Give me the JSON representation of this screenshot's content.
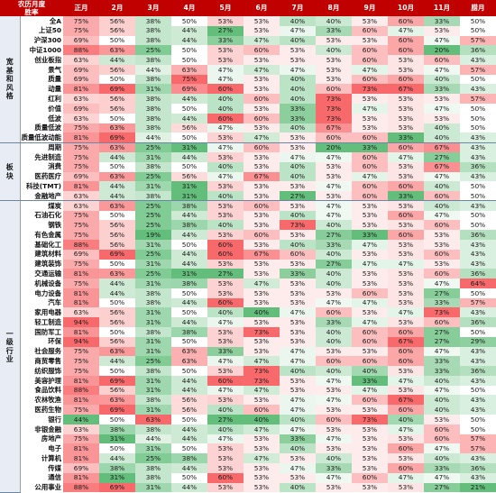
{
  "chart_data": {
    "type": "table",
    "title": "农历月度",
    "subtitle": "胜率",
    "columns": [
      "正月",
      "2月",
      "3月",
      "4月",
      "5月",
      "6月",
      "7月",
      "8月",
      "9月",
      "10月",
      "11月",
      "腊月"
    ],
    "groups": [
      {
        "name": "宽基和风格",
        "rows": [
          {
            "name": "全A",
            "values": [
              75,
              56,
              38,
              50,
              53,
              53,
              40,
              40,
              53,
              60,
              33,
              50
            ]
          },
          {
            "name": "上证50",
            "values": [
              75,
              56,
              38,
              44,
              27,
              53,
              47,
              33,
              60,
              47,
              53,
              50
            ]
          },
          {
            "name": "沪深300",
            "values": [
              69,
              50,
              38,
              44,
              33,
              47,
              40,
              53,
              53,
              60,
              47,
              57
            ]
          },
          {
            "name": "中证1000",
            "values": [
              88,
              63,
              25,
              50,
              53,
              60,
              53,
              40,
              60,
              60,
              20,
              36
            ]
          },
          {
            "name": "创业板指",
            "values": [
              63,
              44,
              38,
              50,
              53,
              53,
              53,
              53,
              60,
              53,
              60,
              43
            ]
          },
          {
            "name": "景气",
            "values": [
              69,
              56,
              44,
              63,
              47,
              47,
              47,
              53,
              47,
              53,
              47,
              57
            ]
          },
          {
            "name": "质量",
            "values": [
              69,
              50,
              38,
              75,
              47,
              53,
              40,
              53,
              60,
              60,
              40,
              50
            ]
          },
          {
            "name": "动量",
            "values": [
              81,
              69,
              31,
              69,
              60,
              53,
              40,
              60,
              73,
              67,
              33,
              43
            ]
          },
          {
            "name": "红利",
            "values": [
              63,
              56,
              38,
              44,
              40,
              60,
              40,
              73,
              53,
              53,
              53,
              57
            ]
          },
          {
            "name": "价值",
            "values": [
              69,
              56,
              38,
              50,
              40,
              53,
              33,
              73,
              47,
              53,
              47,
              50
            ]
          },
          {
            "name": "低波",
            "values": [
              63,
              50,
              38,
              44,
              60,
              60,
              33,
              73,
              53,
              53,
              53,
              50
            ]
          },
          {
            "name": "质量低波",
            "values": [
              75,
              63,
              38,
              56,
              47,
              53,
              40,
              67,
              53,
              53,
              40,
              50
            ]
          },
          {
            "name": "质量低波动能",
            "values": [
              81,
              69,
              44,
              50,
              53,
              47,
              53,
              60,
              60,
              33,
              40,
              43
            ]
          }
        ]
      },
      {
        "name": "板块",
        "rows": [
          {
            "name": "周期",
            "values": [
              75,
              63,
              25,
              31,
              47,
              60,
              53,
              20,
              33,
              60,
              67,
              43
            ]
          },
          {
            "name": "先进制造",
            "values": [
              75,
              44,
              31,
              44,
              53,
              53,
              47,
              47,
              60,
              47,
              27,
              43
            ]
          },
          {
            "name": "消费",
            "values": [
              75,
              50,
              38,
              50,
              40,
              53,
              40,
              53,
              60,
              53,
              67,
              36
            ]
          },
          {
            "name": "医药医疗",
            "values": [
              69,
              63,
              25,
              56,
              47,
              67,
              40,
              53,
              47,
              53,
              47,
              43
            ]
          },
          {
            "name": "科技(TMT)",
            "values": [
              81,
              44,
              31,
              31,
              53,
              53,
              53,
              47,
              60,
              60,
              40,
              50
            ]
          },
          {
            "name": "金融地产",
            "values": [
              63,
              44,
              38,
              31,
              40,
              53,
              27,
              53,
              60,
              33,
              60,
              50
            ]
          }
        ]
      },
      {
        "name": "一级行业",
        "rows": [
          {
            "name": "煤炭",
            "values": [
              63,
              63,
              25,
              38,
              53,
              60,
              53,
              47,
              53,
              53,
              40,
              43
            ]
          },
          {
            "name": "石油石化",
            "values": [
              75,
              50,
              25,
              44,
              53,
              53,
              40,
              47,
              53,
              60,
              47,
              50
            ]
          },
          {
            "name": "钢铁",
            "values": [
              75,
              56,
              25,
              38,
              40,
              53,
              73,
              40,
              53,
              53,
              60,
              50
            ]
          },
          {
            "name": "有色金属",
            "values": [
              75,
              56,
              19,
              44,
              53,
              60,
              53,
              27,
              33,
              60,
              53,
              36
            ]
          },
          {
            "name": "基础化工",
            "values": [
              88,
              56,
              31,
              50,
              60,
              53,
              40,
              33,
              47,
              53,
              53,
              43
            ]
          },
          {
            "name": "建筑材料",
            "values": [
              69,
              69,
              25,
              44,
              60,
              67,
              60,
              40,
              53,
              53,
              60,
              43
            ]
          },
          {
            "name": "建筑装饰",
            "values": [
              75,
              50,
              31,
              44,
              53,
              53,
              53,
              27,
              47,
              47,
              53,
              43
            ]
          },
          {
            "name": "交通运输",
            "values": [
              81,
              63,
              25,
              31,
              27,
              53,
              33,
              40,
              53,
              53,
              60,
              36
            ]
          },
          {
            "name": "机械设备",
            "values": [
              75,
              44,
              31,
              38,
              53,
              47,
              53,
              40,
              53,
              53,
              47,
              64
            ]
          },
          {
            "name": "电力设备",
            "values": [
              81,
              44,
              38,
              50,
              53,
              53,
              53,
              53,
              60,
              53,
              27,
              50
            ]
          },
          {
            "name": "汽车",
            "values": [
              81,
              50,
              38,
              44,
              60,
              53,
              53,
              47,
              47,
              53,
              33,
              57
            ]
          },
          {
            "name": "家用电器",
            "values": [
              63,
              56,
              31,
              50,
              40,
              40,
              47,
              60,
              53,
              47,
              73,
              43
            ]
          },
          {
            "name": "轻工制造",
            "values": [
              94,
              56,
              31,
              44,
              47,
              53,
              53,
              33,
              47,
              53,
              60,
              36
            ]
          },
          {
            "name": "国防军工",
            "values": [
              81,
              50,
              38,
              38,
              53,
              73,
              53,
              40,
              60,
              60,
              27,
              50
            ]
          },
          {
            "name": "环保",
            "values": [
              94,
              56,
              31,
              50,
              53,
              53,
              53,
              40,
              60,
              67,
              27,
              29
            ]
          },
          {
            "name": "社会服务",
            "values": [
              75,
              63,
              31,
              63,
              33,
              53,
              47,
              53,
              53,
              60,
              47,
              43
            ]
          },
          {
            "name": "商贸零售",
            "values": [
              75,
              44,
              25,
              63,
              47,
              47,
              47,
              60,
              60,
              60,
              33,
              43
            ]
          },
          {
            "name": "纺织服饰",
            "values": [
              75,
              50,
              38,
              50,
              53,
              73,
              40,
              40,
              40,
              53,
              33,
              36
            ]
          },
          {
            "name": "美容护理",
            "values": [
              81,
              69,
              31,
              44,
              60,
              73,
              53,
              47,
              33,
              47,
              40,
              43
            ]
          },
          {
            "name": "食品饮料",
            "values": [
              88,
              56,
              31,
              44,
              47,
              47,
              53,
              53,
              47,
              53,
              47,
              50
            ]
          },
          {
            "name": "农林牧渔",
            "values": [
              81,
              63,
              38,
              56,
              53,
              53,
              47,
              47,
              60,
              67,
              40,
              43
            ]
          },
          {
            "name": "医药生物",
            "values": [
              75,
              69,
              31,
              56,
              40,
              60,
              47,
              53,
              53,
              60,
              40,
              43
            ]
          },
          {
            "name": "银行",
            "values": [
              44,
              50,
              63,
              50,
              27,
              40,
              40,
              60,
              73,
              40,
              53,
              50
            ]
          },
          {
            "name": "非银金融",
            "values": [
              63,
              38,
              38,
              44,
              40,
              47,
              47,
              53,
              53,
              47,
              60,
              50
            ]
          },
          {
            "name": "房地产",
            "values": [
              75,
              31,
              44,
              44,
              47,
              53,
              33,
              47,
              53,
              53,
              60,
              57
            ]
          },
          {
            "name": "电子",
            "values": [
              81,
              50,
              31,
              50,
              53,
              53,
              40,
              53,
              53,
              60,
              47,
              57
            ]
          },
          {
            "name": "计算机",
            "values": [
              81,
              44,
              25,
              38,
              53,
              47,
              53,
              40,
              53,
              53,
              40,
              43
            ]
          },
          {
            "name": "传媒",
            "values": [
              69,
              38,
              38,
              44,
              53,
              53,
              47,
              33,
              53,
              60,
              33,
              36
            ]
          },
          {
            "name": "通信",
            "values": [
              81,
              31,
              38,
              50,
              60,
              53,
              53,
              47,
              60,
              47,
              47,
              43
            ]
          },
          {
            "name": "公用事业",
            "values": [
              88,
              69,
              31,
              44,
              53,
              53,
              40,
              53,
              53,
              53,
              27,
              21
            ]
          }
        ]
      }
    ]
  },
  "colors": {
    "header_bg": "#c00000",
    "high": "#f8696b",
    "mid": "#ffffff",
    "low": "#63be7b",
    "group_bg": "#e8edf5"
  }
}
